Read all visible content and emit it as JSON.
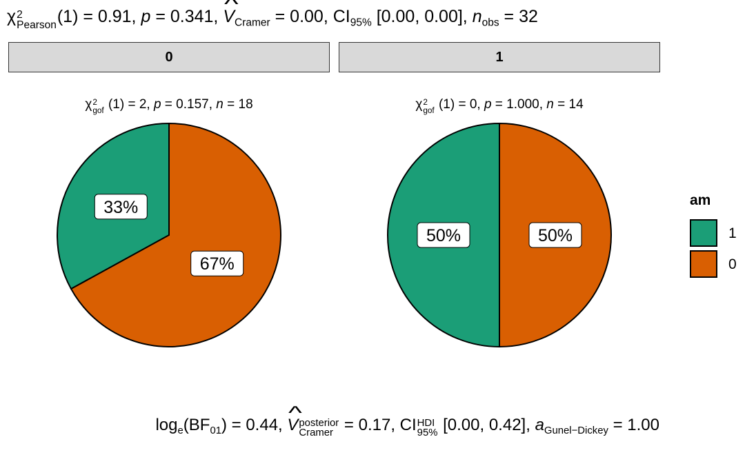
{
  "stats_top": {
    "chi": "χ",
    "chi_sup": "2",
    "chi_sub": "Pearson",
    "df_value": "(1) = 0.91, ",
    "p_sym": "p",
    "p_value": " = 0.341, ",
    "v_sym": "V",
    "v_sub": "Cramer",
    "v_value": " = 0.00, CI",
    "ci_sub": "95%",
    "ci_value": " [0.00, 0.00], ",
    "n_sym": "n",
    "n_sub": "obs",
    "n_value": " = 32"
  },
  "stats_bottom": {
    "log": "log",
    "log_sub": "e",
    "bf": "(BF",
    "bf_sub": "01",
    "bf_value": ") = 0.44, ",
    "v_sym": "V",
    "v_sup": "posterior",
    "v_sub": "Cramer",
    "v_value": " = 0.17, CI",
    "ci_sup": "HDI",
    "ci_sub": "95%",
    "ci_value": " [0.00, 0.42], ",
    "a_sym": "a",
    "a_sub": "Gunel−Dickey",
    "a_value": " = 1.00"
  },
  "colors": {
    "group_1": "#1b9e77",
    "group_0": "#d95f02",
    "strip_bg": "#d9d9d9"
  },
  "chart_data": {
    "type": "pie",
    "legend": {
      "title": "am",
      "position": "right",
      "entries": [
        {
          "label": "1",
          "color": "#1b9e77"
        },
        {
          "label": "0",
          "color": "#d95f02"
        }
      ]
    },
    "facets": [
      {
        "strip_label": "0",
        "subtitle": {
          "chi": "χ",
          "sup": "2",
          "sub": "gof",
          "df": " (1) = 2,  ",
          "p_sym": "p",
          "p_value": " = 0.157,  ",
          "n_sym": "n",
          "n_value": " = 18"
        },
        "slices": [
          {
            "category": "1",
            "percent": 33,
            "label": "33%"
          },
          {
            "category": "0",
            "percent": 67,
            "label": "67%"
          }
        ]
      },
      {
        "strip_label": "1",
        "subtitle": {
          "chi": "χ",
          "sup": "2",
          "sub": "gof",
          "df": " (1) = 0,  ",
          "p_sym": "p",
          "p_value": " = 1.000,  ",
          "n_sym": "n",
          "n_value": " = 14"
        },
        "slices": [
          {
            "category": "1",
            "percent": 50,
            "label": "50%"
          },
          {
            "category": "0",
            "percent": 50,
            "label": "50%"
          }
        ]
      }
    ]
  }
}
